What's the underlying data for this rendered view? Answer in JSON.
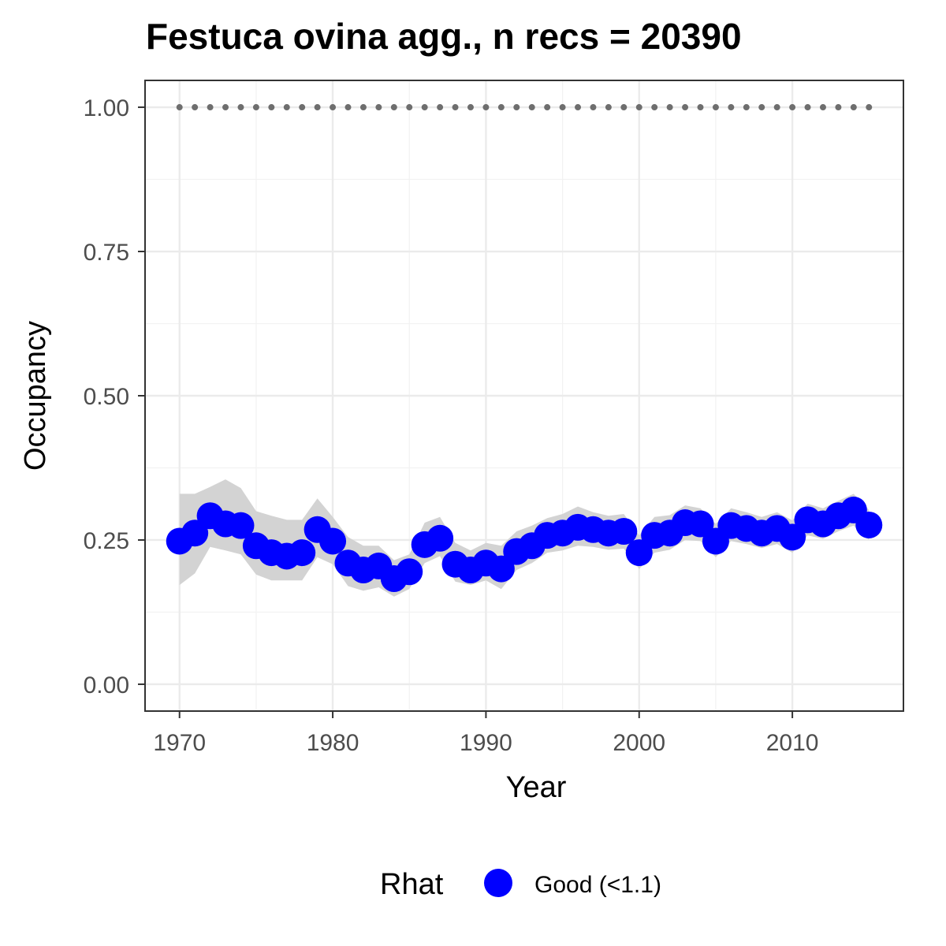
{
  "chart_data": {
    "type": "line",
    "title": "Festuca ovina agg., n recs = 20390",
    "xlabel": "Year",
    "ylabel": "Occupancy",
    "xlim": [
      1967.8,
      1917.2
    ],
    "ylim": [
      -0.0465,
      1.0465
    ],
    "x_ticks": [
      1970,
      1980,
      1990,
      2000,
      2010
    ],
    "x_tick_labels": [
      "1970",
      "1980",
      "1990",
      "2000",
      "2010"
    ],
    "y_ticks": [
      0,
      0.25,
      0.5,
      0.75,
      1.0
    ],
    "y_tick_labels": [
      "0.00",
      "0.25",
      "0.50",
      "0.75",
      "1.00"
    ],
    "grid": true,
    "legend": {
      "title": "Rhat",
      "position": "bottom",
      "entries": [
        {
          "label": "Good (<1.1)",
          "color": "#0000ff"
        }
      ]
    },
    "series": [
      {
        "name": "Occupancy (Rhat Good <1.1)",
        "color": "#0000ff",
        "x": [
          1970,
          1971,
          1972,
          1973,
          1974,
          1975,
          1976,
          1977,
          1978,
          1979,
          1980,
          1981,
          1982,
          1983,
          1984,
          1985,
          1986,
          1987,
          1988,
          1989,
          1990,
          1991,
          1992,
          1993,
          1994,
          1995,
          1996,
          1997,
          1998,
          1999,
          2000,
          2001,
          2002,
          2003,
          2004,
          2005,
          2006,
          2007,
          2008,
          2009,
          2010,
          2011,
          2012,
          2013,
          2014,
          2015
        ],
        "y": [
          0.248,
          0.262,
          0.292,
          0.278,
          0.275,
          0.24,
          0.228,
          0.222,
          0.228,
          0.268,
          0.248,
          0.21,
          0.198,
          0.205,
          0.183,
          0.195,
          0.242,
          0.253,
          0.208,
          0.198,
          0.21,
          0.2,
          0.23,
          0.24,
          0.258,
          0.262,
          0.272,
          0.268,
          0.262,
          0.265,
          0.228,
          0.258,
          0.262,
          0.28,
          0.278,
          0.248,
          0.275,
          0.27,
          0.262,
          0.27,
          0.255,
          0.285,
          0.278,
          0.292,
          0.302,
          0.276
        ],
        "lower": [
          0.172,
          0.192,
          0.238,
          0.232,
          0.225,
          0.19,
          0.18,
          0.18,
          0.18,
          0.22,
          0.208,
          0.17,
          0.162,
          0.168,
          0.152,
          0.165,
          0.21,
          0.222,
          0.178,
          0.172,
          0.18,
          0.165,
          0.198,
          0.21,
          0.228,
          0.232,
          0.24,
          0.238,
          0.233,
          0.235,
          0.2,
          0.228,
          0.233,
          0.25,
          0.248,
          0.22,
          0.248,
          0.243,
          0.236,
          0.243,
          0.228,
          0.258,
          0.252,
          0.265,
          0.275,
          0.25
        ],
        "upper": [
          0.33,
          0.33,
          0.342,
          0.355,
          0.34,
          0.3,
          0.292,
          0.285,
          0.285,
          0.322,
          0.29,
          0.255,
          0.24,
          0.24,
          0.215,
          0.225,
          0.28,
          0.29,
          0.245,
          0.232,
          0.245,
          0.24,
          0.265,
          0.275,
          0.288,
          0.295,
          0.308,
          0.298,
          0.292,
          0.295,
          0.258,
          0.29,
          0.293,
          0.31,
          0.305,
          0.278,
          0.305,
          0.298,
          0.29,
          0.298,
          0.284,
          0.313,
          0.305,
          0.318,
          0.33,
          0.302
        ]
      },
      {
        "name": "Reference line",
        "color": "#6e6e6e",
        "style": "dotted",
        "x": [
          1970,
          2015
        ],
        "y": [
          1.0,
          1.0
        ]
      }
    ]
  }
}
